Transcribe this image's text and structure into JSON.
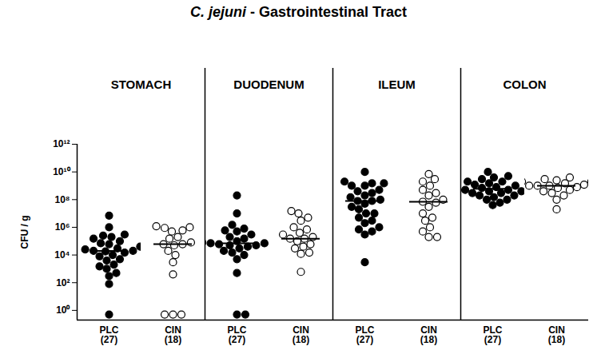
{
  "chart_data": {
    "type": "scatter",
    "title": "C. jejuni - Gastrointestinal Tract",
    "ylabel": "CFU / g",
    "log": "y",
    "ylim": [
      0.2,
      1000000000000.0
    ],
    "yticks": [
      {
        "value": 1,
        "label": "10⁰"
      },
      {
        "value": 100,
        "label": "10²"
      },
      {
        "value": 10000,
        "label": "10⁴"
      },
      {
        "value": 1000000,
        "label": "10⁶"
      },
      {
        "value": 100000000,
        "label": "10⁸"
      },
      {
        "value": 10000000000,
        "label": "10¹⁰"
      },
      {
        "value": 1000000000000,
        "label": "10¹²"
      }
    ],
    "categories": [
      "STOMACH",
      "DUODENUM",
      "ILEUM",
      "COLON"
    ],
    "series": [
      {
        "name": "PLC",
        "n_label": "(27)",
        "color": "#000000",
        "marker": "filled_circle",
        "values": [
          [
            7000000.0,
            1000000.0,
            300000.0,
            250000.0,
            200000.0,
            150000.0,
            100000.0,
            70000.0,
            60000.0,
            40000.0,
            30000.0,
            25000.0,
            20000.0,
            20000.0,
            18000.0,
            15000.0,
            10000.0,
            8000.0,
            5000.0,
            4000.0,
            2000.0,
            1500.0,
            1000.0,
            500.0,
            300.0,
            80,
            0.5
          ],
          [
            200000000.0,
            10000000.0,
            1500000.0,
            800000.0,
            600000.0,
            500000.0,
            300000.0,
            200000.0,
            150000.0,
            120000.0,
            100000.0,
            100000.0,
            80000.0,
            70000.0,
            70000.0,
            60000.0,
            50000.0,
            50000.0,
            40000.0,
            30000.0,
            20000.0,
            15000.0,
            10000.0,
            5000.0,
            500.0,
            0.5,
            0.5
          ],
          [
            10000000000.0,
            2000000000.0,
            1500000000.0,
            1500000000.0,
            1000000000.0,
            1000000000.0,
            500000000.0,
            400000000.0,
            300000000.0,
            200000000.0,
            150000000.0,
            100000000.0,
            80000000.0,
            80000000.0,
            50000000.0,
            30000000.0,
            20000000.0,
            10000000.0,
            10000000.0,
            5000000.0,
            3000000.0,
            2000000.0,
            1000000.0,
            700000.0,
            500000.0,
            300000.0,
            3000.0
          ],
          [
            10000000000.0,
            5000000000.0,
            4000000000.0,
            3000000000.0,
            2000000000.0,
            2000000000.0,
            1500000000.0,
            1200000000.0,
            1000000000.0,
            1000000000.0,
            800000000.0,
            700000000.0,
            600000000.0,
            600000000.0,
            500000000.0,
            500000000.0,
            400000000.0,
            400000000.0,
            300000000.0,
            300000000.0,
            200000000.0,
            200000000.0,
            150000000.0,
            100000000.0,
            100000000.0,
            60000000.0,
            40000000.0
          ]
        ],
        "medians": [
          20000.0,
          70000.0,
          80000000.0,
          600000000.0
        ]
      },
      {
        "name": "CIN",
        "n_label": "(18)",
        "color": "#000000",
        "marker": "open_circle",
        "values": [
          [
            1000000.0,
            1200000.0,
            900000.0,
            600000.0,
            500000.0,
            200000.0,
            150000.0,
            80000.0,
            60000.0,
            60000.0,
            50000.0,
            20000.0,
            10000.0,
            3000.0,
            400.0,
            0.5,
            0.5,
            0.5
          ],
          [
            15000000.0,
            10000000.0,
            5000000.0,
            3000000.0,
            1000000.0,
            700000.0,
            400000.0,
            300000.0,
            200000.0,
            150000.0,
            150000.0,
            100000.0,
            60000.0,
            40000.0,
            30000.0,
            15000.0,
            12000.0,
            600.0
          ],
          [
            7000000000.0,
            3000000000.0,
            2000000000.0,
            1000000000.0,
            500000000.0,
            300000000.0,
            200000000.0,
            100000000.0,
            70000000.0,
            60000000.0,
            30000000.0,
            10000000.0,
            5000000.0,
            3000000.0,
            1000000.0,
            500000.0,
            200000.0,
            200000.0
          ],
          [
            4000000000.0,
            3000000000.0,
            2500000000.0,
            2000000000.0,
            2000000000.0,
            1500000000.0,
            1200000000.0,
            1000000000.0,
            1000000000.0,
            1000000000.0,
            800000000.0,
            700000000.0,
            500000000.0,
            400000000.0,
            300000000.0,
            200000000.0,
            100000000.0,
            20000000.0
          ]
        ],
        "medians": [
          60000.0,
          150000.0,
          70000000.0,
          1000000000.0
        ]
      }
    ]
  }
}
